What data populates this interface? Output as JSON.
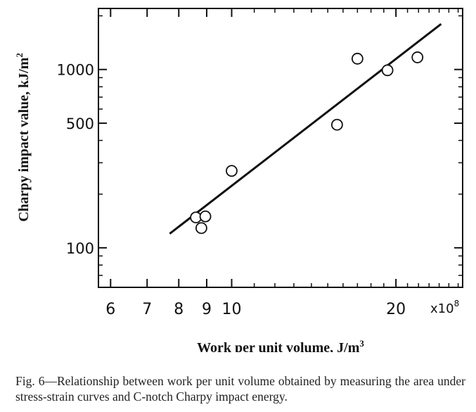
{
  "chart_data": {
    "type": "scatter",
    "xlabel": "Work per unit volume, J/m",
    "xlabel_sup": "3",
    "ylabel": "Charpy impact value, kJ/m",
    "ylabel_sup": "2",
    "x_multiplier": "x10",
    "x_multiplier_exp": "8",
    "x_scale": "log",
    "y_scale": "log",
    "xlim": [
      5.7,
      26.5
    ],
    "ylim": [
      60,
      2200
    ],
    "x_ticks": [
      {
        "value": 6,
        "label": "6"
      },
      {
        "value": 7,
        "label": "7"
      },
      {
        "value": 8,
        "label": "8"
      },
      {
        "value": 9,
        "label": "9"
      },
      {
        "value": 10,
        "label": "10"
      },
      {
        "value": 20,
        "label": "20"
      }
    ],
    "y_ticks": [
      {
        "value": 100,
        "label": "100"
      },
      {
        "value": 500,
        "label": "500"
      },
      {
        "value": 1000,
        "label": "1000"
      }
    ],
    "points": [
      {
        "x": 8.6,
        "y": 148
      },
      {
        "x": 8.95,
        "y": 150
      },
      {
        "x": 8.8,
        "y": 129
      },
      {
        "x": 10.0,
        "y": 270
      },
      {
        "x": 15.6,
        "y": 490
      },
      {
        "x": 17.0,
        "y": 1150
      },
      {
        "x": 19.3,
        "y": 990
      },
      {
        "x": 21.9,
        "y": 1170
      }
    ],
    "fit_line": {
      "x": [
        7.7,
        24.2
      ],
      "y": [
        120,
        1800
      ]
    },
    "grid": false,
    "legend": "none"
  },
  "caption": "Fig. 6—Relationship between work per unit volume obtained by measuring the area under stress-strain curves and C-notch Charpy impact energy."
}
